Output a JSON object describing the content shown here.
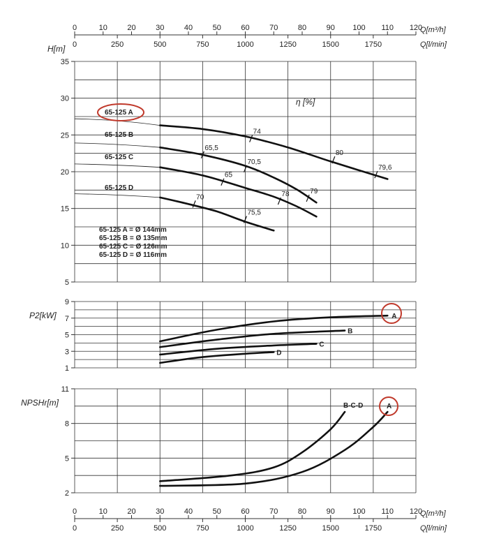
{
  "chart_data": [
    {
      "type": "line",
      "title": "",
      "ylabel": "H[m]",
      "xlabel": "Q[m³/h]",
      "xlabel_secondary": "Q[l/min]",
      "xlim": [
        0,
        120
      ],
      "ylim": [
        5,
        35
      ],
      "grid": true,
      "x_ticks": [
        "0",
        "10",
        "20",
        "30",
        "40",
        "50",
        "60",
        "70",
        "80",
        "90",
        "100",
        "110",
        "120"
      ],
      "x_ticks_secondary": [
        "0",
        "250",
        "500",
        "750",
        "1000",
        "1250",
        "1500",
        "1750"
      ],
      "y_ticks": [
        "5",
        "10",
        "15",
        "20",
        "25",
        "30",
        "35"
      ],
      "efficiency_label": "η [%]",
      "series": [
        {
          "name": "65-125 A",
          "x": [
            30,
            45,
            60,
            75,
            90,
            110
          ],
          "y": [
            26.3,
            25.8,
            24.8,
            23.3,
            21.4,
            19.0
          ]
        },
        {
          "name": "65-125 B",
          "x": [
            30,
            45,
            60,
            70,
            78,
            85
          ],
          "y": [
            23.3,
            22.3,
            20.8,
            19.2,
            17.6,
            15.8
          ]
        },
        {
          "name": "65-125 C",
          "x": [
            30,
            45,
            60,
            70,
            78,
            85
          ],
          "y": [
            20.6,
            19.5,
            17.8,
            16.6,
            15.3,
            13.9
          ]
        },
        {
          "name": "65-125 D",
          "x": [
            30,
            40,
            50,
            60,
            70
          ],
          "y": [
            16.5,
            15.6,
            14.6,
            13.2,
            12.0
          ]
        }
      ],
      "efficiency_marks": [
        {
          "series": "65-125 A",
          "x": 62,
          "y": 24.5,
          "label": "74"
        },
        {
          "series": "65-125 A",
          "x": 91,
          "y": 21.6,
          "label": "80"
        },
        {
          "series": "65-125 A",
          "x": 106,
          "y": 19.6,
          "label": "79,6"
        },
        {
          "series": "65-125 B",
          "x": 45,
          "y": 22.3,
          "label": "65,5"
        },
        {
          "series": "65-125 B",
          "x": 60,
          "y": 20.4,
          "label": "70,5"
        },
        {
          "series": "65-125 B",
          "x": 82,
          "y": 16.4,
          "label": "79"
        },
        {
          "series": "65-125 C",
          "x": 52,
          "y": 18.6,
          "label": "65"
        },
        {
          "series": "65-125 C",
          "x": 72,
          "y": 16.0,
          "label": "78"
        },
        {
          "series": "65-125 D",
          "x": 42,
          "y": 15.6,
          "label": "70"
        },
        {
          "series": "65-125 D",
          "x": 60,
          "y": 13.5,
          "label": "75,5"
        }
      ],
      "diameters": [
        "65-125 A = Ø 144mm",
        "65-125 B = Ø 135mm",
        "65-125 C = Ø 126mm",
        "65-125 D = Ø 116mm"
      ]
    },
    {
      "type": "line",
      "title": "",
      "ylabel": "P2[kW]",
      "xlim": [
        0,
        120
      ],
      "ylim": [
        1,
        9
      ],
      "grid": true,
      "y_ticks": [
        "1",
        "3",
        "5",
        "7",
        "9"
      ],
      "series": [
        {
          "name": "A",
          "x": [
            30,
            50,
            70,
            90,
            110
          ],
          "y": [
            4.2,
            5.6,
            6.6,
            7.1,
            7.3
          ]
        },
        {
          "name": "B",
          "x": [
            30,
            50,
            70,
            95
          ],
          "y": [
            3.5,
            4.4,
            5.1,
            5.5
          ]
        },
        {
          "name": "C",
          "x": [
            30,
            50,
            70,
            85
          ],
          "y": [
            2.6,
            3.3,
            3.7,
            3.9
          ]
        },
        {
          "name": "D",
          "x": [
            30,
            45,
            60,
            70
          ],
          "y": [
            1.6,
            2.3,
            2.7,
            2.9
          ]
        }
      ]
    },
    {
      "type": "line",
      "title": "",
      "ylabel": "NPSHr[m]",
      "xlabel": "Q[m³/h]",
      "xlabel_secondary": "Q[l/min]",
      "xlim": [
        0,
        120
      ],
      "ylim": [
        2,
        11
      ],
      "grid": true,
      "y_ticks": [
        "2",
        "5",
        "8",
        "11"
      ],
      "series": [
        {
          "name": "B-C-D",
          "x": [
            30,
            55,
            70,
            80,
            90,
            95
          ],
          "y": [
            3.0,
            3.5,
            4.2,
            5.5,
            7.5,
            9.0
          ]
        },
        {
          "name": "A",
          "x": [
            30,
            60,
            80,
            95,
            105,
            110
          ],
          "y": [
            2.6,
            2.8,
            3.8,
            5.7,
            7.7,
            9.0
          ]
        }
      ]
    }
  ]
}
